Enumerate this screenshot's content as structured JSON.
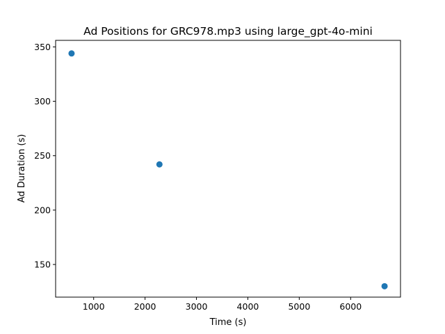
{
  "chart_data": {
    "type": "scatter",
    "title": "Ad Positions for GRC978.mp3 using large_gpt-4o-mini",
    "xlabel": "Time (s)",
    "ylabel": "Ad Duration (s)",
    "xlim": [
      260,
      6970
    ],
    "ylim": [
      120,
      356
    ],
    "xticks": [
      1000,
      2000,
      3000,
      4000,
      5000,
      6000
    ],
    "yticks": [
      150,
      200,
      250,
      300,
      350
    ],
    "grid": false,
    "legend": "none",
    "series": [
      {
        "color": "#1f77b4",
        "points": [
          {
            "x": 570,
            "y": 344
          },
          {
            "x": 2280,
            "y": 242
          },
          {
            "x": 6660,
            "y": 130
          }
        ]
      }
    ]
  }
}
